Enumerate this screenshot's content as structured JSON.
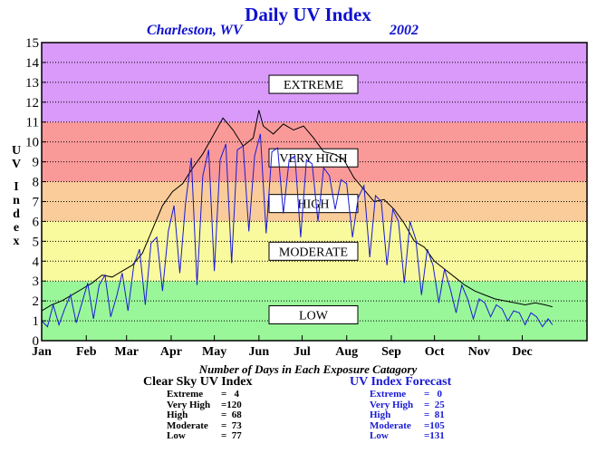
{
  "header": {
    "title": "Daily UV Index",
    "location": "Charleston, WV",
    "year": "2002"
  },
  "colors": {
    "band_low": "#99f799",
    "band_moderate": "#f9f99d",
    "band_high": "#f9cc99",
    "band_very_high": "#f99a99",
    "band_extreme": "#d99af9",
    "clear_sky_line": "#000000",
    "forecast_line": "#1a1ad6",
    "title_text": "#1010d0"
  },
  "chart_data": {
    "type": "line",
    "ylabel": "UV Index",
    "ylim": [
      0,
      15
    ],
    "yticks": [
      "0",
      "1",
      "2",
      "3",
      "4",
      "5",
      "6",
      "7",
      "8",
      "9",
      "10",
      "11",
      "12",
      "13",
      "14",
      "15"
    ],
    "xlim": [
      1,
      380
    ],
    "xtick_labels": [
      "Jan",
      "Feb",
      "Mar",
      "Apr",
      "May",
      "Jun",
      "Jul",
      "Aug",
      "Sep",
      "Oct",
      "Nov",
      "Dec"
    ],
    "grid": true,
    "bands": [
      {
        "label": "LOW",
        "from": 0,
        "to": 3
      },
      {
        "label": "MODERATE",
        "from": 3,
        "to": 6
      },
      {
        "label": "HIGH",
        "from": 6,
        "to": 8
      },
      {
        "label": "VERY HIGH",
        "from": 8,
        "to": 11
      },
      {
        "label": "EXTREME",
        "from": 11,
        "to": 15
      }
    ],
    "series": [
      {
        "name": "Clear Sky UV Index",
        "x": [
          1,
          8,
          15,
          22,
          29,
          36,
          43,
          50,
          57,
          64,
          71,
          78,
          85,
          92,
          99,
          106,
          113,
          120,
          127,
          134,
          141,
          148,
          152,
          155,
          162,
          169,
          176,
          183,
          190,
          197,
          204,
          211,
          218,
          225,
          232,
          239,
          246,
          253,
          260,
          267,
          274,
          281,
          288,
          295,
          302,
          309,
          316,
          323,
          330,
          337,
          344,
          351,
          356
        ],
        "y": [
          1.5,
          1.8,
          2.0,
          2.3,
          2.6,
          2.9,
          3.3,
          3.2,
          3.5,
          3.8,
          4.4,
          5.6,
          6.8,
          7.5,
          7.9,
          8.7,
          9.4,
          10.3,
          11.2,
          10.6,
          9.8,
          10.2,
          11.6,
          10.8,
          10.4,
          10.9,
          10.6,
          10.8,
          10.2,
          9.5,
          9.4,
          9.1,
          8.2,
          7.6,
          7.0,
          7.1,
          6.6,
          5.9,
          5.0,
          4.7,
          4.0,
          3.6,
          3.2,
          2.8,
          2.5,
          2.3,
          2.1,
          2.0,
          1.9,
          1.8,
          1.9,
          1.8,
          1.7
        ]
      },
      {
        "name": "UV Index Forecast",
        "x": [
          1,
          5,
          9,
          13,
          17,
          21,
          25,
          29,
          33,
          37,
          41,
          45,
          49,
          53,
          57,
          61,
          65,
          69,
          73,
          77,
          81,
          85,
          89,
          93,
          97,
          101,
          105,
          109,
          113,
          117,
          121,
          125,
          129,
          133,
          137,
          141,
          145,
          149,
          153,
          157,
          161,
          165,
          169,
          173,
          177,
          181,
          185,
          189,
          193,
          197,
          201,
          205,
          209,
          213,
          217,
          221,
          225,
          229,
          233,
          237,
          241,
          245,
          249,
          253,
          257,
          261,
          265,
          269,
          273,
          277,
          281,
          285,
          289,
          293,
          297,
          301,
          305,
          309,
          313,
          317,
          321,
          325,
          329,
          333,
          337,
          341,
          345,
          349,
          353,
          356
        ],
        "y": [
          1.0,
          0.7,
          1.8,
          0.8,
          1.6,
          2.3,
          0.9,
          1.9,
          2.9,
          1.1,
          2.8,
          3.3,
          1.2,
          2.2,
          3.4,
          1.5,
          3.8,
          4.6,
          1.8,
          4.9,
          5.2,
          2.5,
          5.5,
          6.8,
          3.4,
          6.9,
          9.2,
          2.8,
          8.3,
          9.6,
          3.5,
          9.1,
          9.9,
          3.9,
          9.6,
          9.8,
          5.5,
          9.3,
          10.4,
          5.4,
          9.5,
          9.7,
          6.4,
          9.1,
          9.3,
          5.2,
          9.1,
          8.9,
          6.0,
          8.7,
          8.3,
          6.6,
          8.1,
          7.9,
          5.2,
          7.2,
          7.8,
          4.2,
          7.3,
          7.0,
          3.8,
          6.6,
          6.0,
          2.9,
          6.0,
          5.1,
          2.3,
          4.6,
          3.8,
          1.9,
          3.6,
          2.6,
          1.4,
          2.8,
          2.1,
          1.1,
          2.1,
          1.9,
          1.2,
          1.8,
          1.6,
          1.0,
          1.5,
          1.4,
          0.8,
          1.4,
          1.2,
          0.7,
          1.1,
          0.8
        ]
      }
    ]
  },
  "counts": {
    "title": "Number of Days in Each Exposure Catagory",
    "clear_sky": {
      "heading": "Clear Sky UV Index",
      "rows": [
        {
          "label": "Extreme",
          "value": "=   4"
        },
        {
          "label": "Very High",
          "value": "=120"
        },
        {
          "label": "High",
          "value": "=  68"
        },
        {
          "label": "Moderate",
          "value": "=  73"
        },
        {
          "label": "Low",
          "value": "=  77"
        }
      ]
    },
    "forecast": {
      "heading": "UV Index Forecast",
      "rows": [
        {
          "label": "Extreme",
          "value": "=   0"
        },
        {
          "label": "Very High",
          "value": "=  25"
        },
        {
          "label": "High",
          "value": "=  81"
        },
        {
          "label": "Moderate",
          "value": "=105"
        },
        {
          "label": "Low",
          "value": "=131"
        }
      ]
    }
  }
}
